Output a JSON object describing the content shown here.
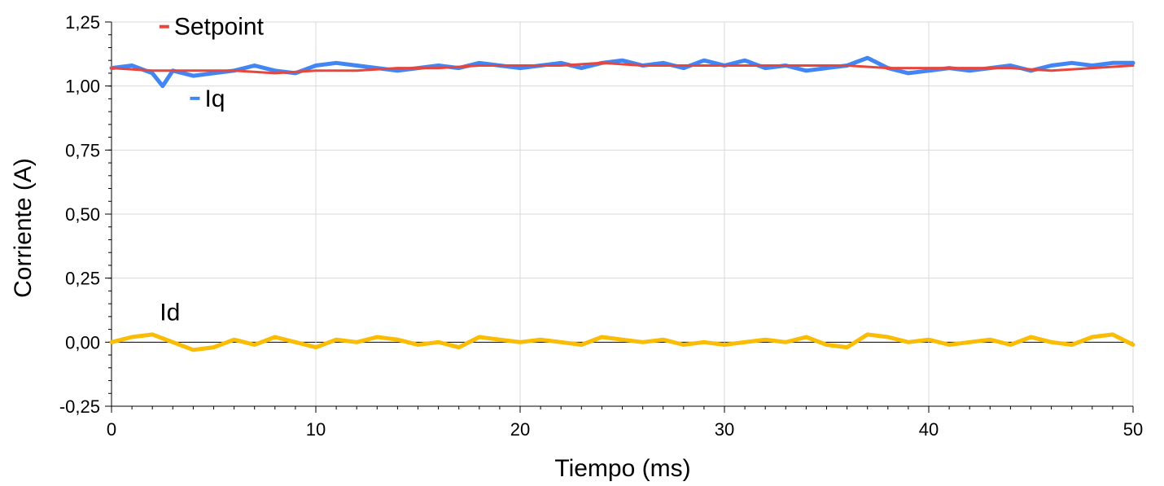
{
  "chart_data": {
    "type": "line",
    "title": "",
    "xlabel": "Tiempo (ms)",
    "ylabel": "Corriente (A)",
    "xlim": [
      0,
      50
    ],
    "ylim": [
      -0.25,
      1.25
    ],
    "x_ticks": [
      0,
      10,
      20,
      30,
      40,
      50
    ],
    "x_tick_labels": [
      "0",
      "10",
      "20",
      "30",
      "40",
      "50"
    ],
    "y_ticks": [
      -0.25,
      0,
      0.25,
      0.5,
      0.75,
      1.0,
      1.25
    ],
    "y_tick_labels": [
      "-0,25",
      "0,00",
      "0,25",
      "0,50",
      "0,75",
      "1,00",
      "1,25"
    ],
    "grid": true,
    "legend": "inline labels near series",
    "series": [
      {
        "name": "Iq",
        "color": "#4285F4",
        "x": [
          0,
          1,
          2,
          2.5,
          3,
          4,
          5,
          6,
          7,
          8,
          9,
          10,
          11,
          12,
          13,
          14,
          15,
          16,
          17,
          18,
          19,
          20,
          21,
          22,
          23,
          24,
          25,
          26,
          27,
          28,
          29,
          30,
          31,
          32,
          33,
          34,
          35,
          36,
          37,
          38,
          39,
          40,
          41,
          42,
          43,
          44,
          45,
          46,
          47,
          48,
          49,
          50
        ],
        "y": [
          1.07,
          1.08,
          1.05,
          1.0,
          1.06,
          1.04,
          1.05,
          1.06,
          1.08,
          1.06,
          1.05,
          1.08,
          1.09,
          1.08,
          1.07,
          1.06,
          1.07,
          1.08,
          1.07,
          1.09,
          1.08,
          1.07,
          1.08,
          1.09,
          1.07,
          1.09,
          1.1,
          1.08,
          1.09,
          1.07,
          1.1,
          1.08,
          1.1,
          1.07,
          1.08,
          1.06,
          1.07,
          1.08,
          1.11,
          1.07,
          1.05,
          1.06,
          1.07,
          1.06,
          1.07,
          1.08,
          1.06,
          1.08,
          1.09,
          1.08,
          1.09,
          1.09
        ]
      },
      {
        "name": "Setpoint",
        "color": "#E8453C",
        "x": [
          0,
          2,
          4,
          6,
          8,
          10,
          12,
          14,
          16,
          18,
          20,
          22,
          24,
          26,
          28,
          30,
          32,
          34,
          36,
          38,
          40,
          42,
          44,
          46,
          48,
          50
        ],
        "y": [
          1.07,
          1.06,
          1.06,
          1.06,
          1.05,
          1.06,
          1.06,
          1.07,
          1.07,
          1.08,
          1.08,
          1.08,
          1.09,
          1.08,
          1.08,
          1.08,
          1.08,
          1.08,
          1.08,
          1.07,
          1.07,
          1.07,
          1.07,
          1.06,
          1.07,
          1.08
        ]
      },
      {
        "name": "Id",
        "color": "#FBBC04",
        "x": [
          0,
          1,
          2,
          3,
          4,
          5,
          6,
          7,
          8,
          9,
          10,
          11,
          12,
          13,
          14,
          15,
          16,
          17,
          18,
          19,
          20,
          21,
          22,
          23,
          24,
          25,
          26,
          27,
          28,
          29,
          30,
          31,
          32,
          33,
          34,
          35,
          36,
          37,
          38,
          39,
          40,
          41,
          42,
          43,
          44,
          45,
          46,
          47,
          48,
          49,
          50
        ],
        "y": [
          0.0,
          0.02,
          0.03,
          0.0,
          -0.03,
          -0.02,
          0.01,
          -0.01,
          0.02,
          0.0,
          -0.02,
          0.01,
          0.0,
          0.02,
          0.01,
          -0.01,
          0.0,
          -0.02,
          0.02,
          0.01,
          0.0,
          0.01,
          0.0,
          -0.01,
          0.02,
          0.01,
          0.0,
          0.01,
          -0.01,
          0.0,
          -0.01,
          0.0,
          0.01,
          0.0,
          0.02,
          -0.01,
          -0.02,
          0.03,
          0.02,
          0.0,
          0.01,
          -0.01,
          0.0,
          0.01,
          -0.01,
          0.02,
          0.0,
          -0.01,
          0.02,
          0.03,
          -0.01
        ]
      }
    ],
    "annotations": [
      {
        "text": "Setpoint",
        "x": 3.3,
        "y": 1.2
      },
      {
        "text": "Iq",
        "x": 4.8,
        "y": 0.92
      },
      {
        "text": "Id",
        "x": 2.6,
        "y": 0.085
      }
    ]
  }
}
